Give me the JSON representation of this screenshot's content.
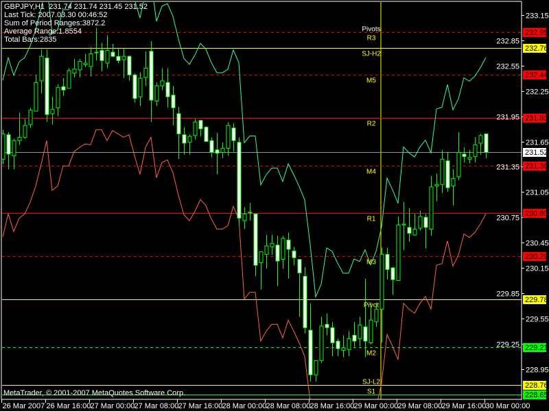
{
  "info": {
    "symbol_line": "GBPJPY,H1  231.74 231.74 231.45 231.52",
    "last_tick": "Last Tick: 2007.03.30 00:46:52",
    "sum_ranges": "Sum of Period Ranges:3872.2",
    "average_range": "Average Range:1.8554",
    "total_bars": "Total Bars:2835"
  },
  "copyright": "MetaTrader, © 2001-2007 MetaQuotes Software Corp.",
  "pivots_title": "Pivots",
  "colors": {
    "background": "#000000",
    "candle_outline": "#00ff00",
    "bull_fill": "#000000",
    "bear_fill": "#ffffff",
    "upper_band": "#33ff99",
    "lower_band": "#ff6347",
    "grid_text": "#ffffff",
    "level_label": "#ffff00",
    "day_separator": "#ffff00",
    "current_price_line": "#8899aa"
  },
  "chart_data": {
    "type": "candlestick",
    "symbol": "GBPJPY",
    "timeframe": "H1",
    "ylim": [
      228.5,
      233.33
    ],
    "y_ticks": [
      "233.15",
      "232.85",
      "232.55",
      "232.25",
      "231.95",
      "231.65",
      "231.35",
      "231.05",
      "230.75",
      "230.45",
      "230.15",
      "229.85",
      "229.55",
      "229.25",
      "228.95"
    ],
    "x_ticks": [
      {
        "bar": 0,
        "label": "26 Mar 2007"
      },
      {
        "bar": 8,
        "label": "26 Mar 16:00"
      },
      {
        "bar": 16,
        "label": "27 Mar 00:00"
      },
      {
        "bar": 24,
        "label": "27 Mar 08:00"
      },
      {
        "bar": 32,
        "label": "27 Mar 16:00"
      },
      {
        "bar": 40,
        "label": "28 Mar 00:00"
      },
      {
        "bar": 48,
        "label": "28 Mar 08:00"
      },
      {
        "bar": 56,
        "label": "28 Mar 16:00"
      },
      {
        "bar": 64,
        "label": "29 Mar 00:00"
      },
      {
        "bar": 72,
        "label": "29 Mar 08:00"
      },
      {
        "bar": 80,
        "label": "29 Mar 16:00"
      },
      {
        "bar": 88,
        "label": "30 Mar 00:00"
      }
    ],
    "ohlc": [
      [
        231.44,
        231.79,
        231.38,
        231.74
      ],
      [
        231.73,
        231.76,
        231.32,
        231.5
      ],
      [
        231.48,
        231.68,
        231.32,
        231.66
      ],
      [
        231.66,
        231.99,
        231.61,
        231.7
      ],
      [
        231.7,
        231.92,
        231.68,
        231.84
      ],
      [
        231.85,
        232.05,
        231.81,
        232.02
      ],
      [
        232.01,
        232.44,
        232.01,
        232.35
      ],
      [
        232.37,
        232.74,
        232.22,
        232.66
      ],
      [
        232.64,
        232.74,
        231.88,
        231.97
      ],
      [
        231.98,
        232.18,
        231.85,
        232.03
      ],
      [
        232.05,
        232.33,
        231.95,
        232.29
      ],
      [
        232.3,
        232.4,
        232.19,
        232.26
      ],
      [
        232.28,
        232.52,
        232.28,
        232.49
      ],
      [
        232.46,
        232.63,
        232.41,
        232.51
      ],
      [
        232.5,
        232.63,
        232.41,
        232.6
      ],
      [
        232.56,
        232.69,
        232.53,
        232.58
      ],
      [
        232.54,
        232.77,
        232.42,
        232.69
      ],
      [
        232.71,
        233.0,
        232.61,
        232.71
      ],
      [
        232.73,
        232.82,
        232.48,
        232.61
      ],
      [
        232.58,
        232.91,
        232.52,
        232.73
      ],
      [
        232.71,
        232.81,
        232.65,
        232.66
      ],
      [
        232.66,
        232.75,
        232.58,
        232.61
      ],
      [
        232.62,
        232.75,
        232.4,
        232.66
      ],
      [
        232.66,
        232.67,
        232.37,
        232.44
      ],
      [
        232.44,
        232.46,
        232.11,
        232.16
      ],
      [
        232.18,
        232.47,
        232.07,
        232.4
      ],
      [
        232.41,
        232.72,
        232.31,
        232.52
      ],
      [
        232.72,
        232.84,
        231.88,
        232.14
      ],
      [
        232.13,
        232.35,
        232.07,
        232.31
      ],
      [
        232.31,
        232.52,
        232.26,
        232.37
      ],
      [
        232.35,
        232.52,
        232.05,
        232.18
      ],
      [
        232.2,
        232.31,
        231.84,
        232.05
      ],
      [
        231.98,
        232.06,
        231.44,
        231.74
      ],
      [
        231.73,
        231.82,
        231.49,
        231.63
      ],
      [
        231.64,
        231.73,
        231.49,
        231.71
      ],
      [
        231.72,
        231.92,
        231.67,
        231.88
      ],
      [
        231.9,
        231.9,
        231.71,
        231.8
      ],
      [
        231.82,
        231.83,
        231.65,
        231.65
      ],
      [
        231.66,
        231.7,
        231.46,
        231.52
      ],
      [
        231.55,
        231.75,
        231.26,
        231.51
      ],
      [
        231.52,
        231.64,
        231.45,
        231.57
      ],
      [
        231.57,
        231.88,
        231.48,
        231.84
      ],
      [
        231.81,
        231.87,
        231.53,
        231.66
      ],
      [
        231.64,
        231.7,
        230.65,
        230.74
      ],
      [
        230.71,
        230.87,
        230.61,
        230.79
      ],
      [
        230.81,
        230.92,
        230.71,
        230.81
      ],
      [
        230.79,
        230.79,
        230.05,
        230.18
      ],
      [
        230.21,
        230.34,
        229.89,
        230.34
      ],
      [
        230.31,
        230.54,
        230.14,
        230.41
      ],
      [
        230.4,
        230.54,
        230.3,
        230.44
      ],
      [
        230.42,
        230.53,
        229.93,
        230.23
      ],
      [
        230.25,
        230.53,
        230.14,
        230.5
      ],
      [
        230.48,
        230.57,
        230.02,
        230.37
      ],
      [
        230.35,
        230.4,
        230.18,
        230.27
      ],
      [
        230.25,
        230.25,
        229.57,
        230.09
      ],
      [
        230.05,
        230.16,
        229.37,
        229.44
      ],
      [
        229.41,
        229.73,
        228.8,
        228.88
      ],
      [
        228.88,
        229.05,
        228.8,
        229.05
      ],
      [
        229.05,
        229.57,
        229.02,
        229.46
      ],
      [
        229.48,
        229.61,
        229.35,
        229.44
      ],
      [
        229.44,
        229.51,
        229.1,
        229.26
      ],
      [
        229.28,
        229.31,
        229.1,
        229.19
      ],
      [
        229.17,
        229.35,
        229.09,
        229.2
      ],
      [
        229.18,
        229.4,
        229.1,
        229.31
      ],
      [
        229.35,
        229.51,
        229.21,
        229.28
      ],
      [
        229.31,
        229.57,
        229.22,
        229.47
      ],
      [
        229.45,
        230.02,
        229.09,
        229.28
      ],
      [
        229.26,
        229.74,
        229.24,
        229.53
      ],
      [
        229.51,
        229.74,
        229.45,
        229.66
      ],
      [
        229.66,
        230.39,
        229.26,
        230.31
      ],
      [
        230.31,
        230.39,
        230.01,
        230.13
      ],
      [
        230.15,
        230.16,
        229.83,
        230.01
      ],
      [
        230.0,
        230.76,
        230.0,
        230.66
      ],
      [
        230.66,
        230.93,
        230.36,
        230.67
      ],
      [
        230.63,
        230.86,
        230.46,
        230.56
      ],
      [
        230.54,
        230.79,
        230.53,
        230.61
      ],
      [
        230.62,
        230.83,
        230.59,
        230.76
      ],
      [
        230.75,
        230.79,
        230.38,
        230.63
      ],
      [
        230.61,
        231.24,
        230.53,
        231.11
      ],
      [
        231.12,
        231.27,
        230.94,
        231.14
      ],
      [
        231.14,
        231.55,
        231.04,
        231.44
      ],
      [
        231.42,
        231.52,
        231.05,
        231.1
      ],
      [
        231.12,
        231.32,
        230.89,
        231.21
      ],
      [
        231.23,
        231.76,
        231.19,
        231.52
      ],
      [
        231.5,
        231.58,
        231.4,
        231.47
      ],
      [
        231.44,
        231.55,
        231.39,
        231.46
      ],
      [
        231.47,
        231.7,
        231.4,
        231.61
      ],
      [
        231.63,
        231.74,
        231.49,
        231.72
      ],
      [
        231.74,
        231.74,
        231.45,
        231.52
      ]
    ],
    "lower_band": [
      230.52,
      230.79,
      230.58,
      230.74,
      230.79,
      230.93,
      231.12,
      231.38,
      231.66,
      231.07,
      231.12,
      231.36,
      231.36,
      231.53,
      231.58,
      231.62,
      231.61,
      231.79,
      231.79,
      231.66,
      231.78,
      231.74,
      231.7,
      231.73,
      231.48,
      231.26,
      231.58,
      231.7,
      231.22,
      231.4,
      231.43,
      231.28,
      231.01,
      230.78,
      230.71,
      230.82,
      230.96,
      230.89,
      230.73,
      230.61,
      230.61,
      230.65,
      230.88,
      230.73,
      229.78,
      229.86,
      229.86,
      229.28,
      229.4,
      229.48,
      229.48,
      229.32,
      229.53,
      229.4,
      229.26,
      229.1,
      228.57,
      227.95,
      228.1,
      228.53,
      228.49,
      228.35,
      228.23,
      228.23,
      228.4,
      228.37,
      228.51,
      228.33,
      228.49,
      228.78,
      229.36,
      229.22,
      229.06,
      229.73,
      229.66,
      229.61,
      229.73,
      229.81,
      229.66,
      230.18,
      230.2,
      230.47,
      230.17,
      230.3,
      230.55,
      230.51,
      230.57,
      230.67,
      230.79
    ],
    "band_width": 1.8554,
    "current_price": {
      "value": "231.52",
      "tag_bg": "#ffffff",
      "line": "#8899aa"
    },
    "day_separator_bar": 69,
    "levels": [
      {
        "label": "R3",
        "value": "232.95",
        "color": "#ff0000",
        "style": "dashed",
        "tag_bg": "#ff0000"
      },
      {
        "label": "SJ-H2",
        "value": "232.76",
        "color": "#ffff00",
        "style": "solid",
        "tag_bg": "#ffff00"
      },
      {
        "label": "M5",
        "value": "232.44",
        "color": "#ff0000",
        "style": "dashed",
        "tag_bg": "#ff0000"
      },
      {
        "label": "R2",
        "value": "231.93",
        "color": "#ff0000",
        "style": "solid",
        "tag_bg": "#ff0000"
      },
      {
        "label": "M4",
        "value": "231.36",
        "color": "#ff0000",
        "style": "dashed",
        "tag_bg": "#ff0000"
      },
      {
        "label": "R1",
        "value": "230.80",
        "color": "#ff0000",
        "style": "solid",
        "tag_bg": "#ff0000"
      },
      {
        "label": "M3",
        "value": "230.29",
        "color": "#ff0000",
        "style": "dashed",
        "tag_bg": "#ff0000"
      },
      {
        "label": "Pivot",
        "value": "229.78",
        "color": "#ffff00",
        "style": "solid",
        "tag_bg": "#ffff00"
      },
      {
        "label": "M2",
        "value": "229.21",
        "color": "#00ff00",
        "style": "dashed",
        "tag_bg": "#00ff00"
      },
      {
        "label": "SJ-L2",
        "value": "228.76",
        "color": "#ffff00",
        "style": "solid",
        "tag_bg": "#ffff00"
      },
      {
        "label": "S1",
        "value": "228.65",
        "color": "#00ff00",
        "style": "solid",
        "tag_bg": "#00ff00"
      }
    ]
  }
}
